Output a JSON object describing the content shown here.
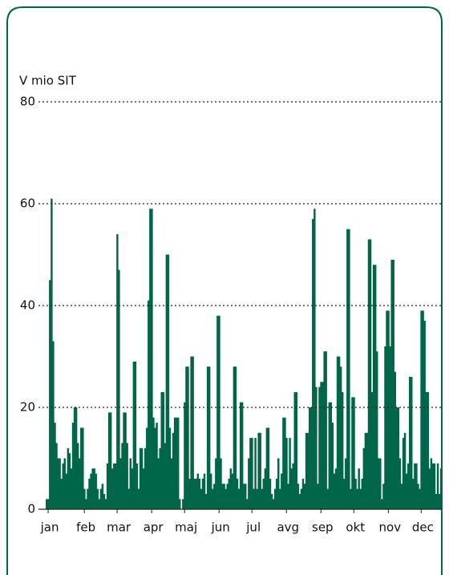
{
  "chart_data": {
    "type": "bar",
    "y_label": "V mio SIT",
    "color": "#00664a",
    "ylim": [
      0,
      80
    ],
    "yticks": [
      0,
      20,
      40,
      60,
      80
    ],
    "grid": true,
    "categories": [
      "jan",
      null,
      null,
      null,
      null,
      null,
      null,
      null,
      null,
      null,
      null,
      null,
      null,
      null,
      null,
      null,
      null,
      null,
      null,
      null,
      null,
      null,
      "feb",
      null,
      null,
      null,
      null,
      null,
      null,
      null,
      null,
      null,
      null,
      null,
      null,
      null,
      null,
      null,
      null,
      null,
      null,
      null,
      "mar",
      null,
      null,
      null,
      null,
      null,
      null,
      null,
      null,
      null,
      null,
      null,
      null,
      null,
      null,
      null,
      null,
      null,
      null,
      null,
      null,
      "apr",
      null,
      null,
      null,
      null,
      null,
      null,
      null,
      null,
      null,
      null,
      null,
      null,
      null,
      null,
      null,
      null,
      null,
      null,
      null,
      "maj",
      null,
      null,
      null,
      null,
      null,
      null,
      null,
      null,
      null,
      null,
      null,
      null,
      null,
      null,
      null,
      null,
      null,
      null,
      null,
      null,
      "jun",
      null,
      null,
      null,
      null,
      null,
      null,
      null,
      null,
      null,
      null,
      null,
      null,
      null,
      null,
      null,
      null,
      null,
      null,
      null,
      "jul",
      null,
      null,
      null,
      null,
      null,
      null,
      null,
      null,
      null,
      null,
      null,
      null,
      null,
      null,
      null,
      null,
      null,
      null,
      null,
      null,
      "avg",
      null,
      null,
      null,
      null,
      null,
      null,
      null,
      null,
      null,
      null,
      null,
      null,
      null,
      null,
      null,
      null,
      null,
      null,
      null,
      null,
      "sep",
      null,
      null,
      null,
      null,
      null,
      null,
      null,
      null,
      null,
      null,
      null,
      null,
      null,
      null,
      null,
      null,
      null,
      null,
      null,
      "okt",
      null,
      null,
      null,
      null,
      null,
      null,
      null,
      null,
      null,
      null,
      null,
      null,
      null,
      null,
      null,
      null,
      null,
      null,
      null,
      null,
      "nov",
      null,
      null,
      null,
      null,
      null,
      null,
      null,
      null,
      null,
      null,
      null,
      null,
      null,
      null,
      null,
      null,
      null,
      null,
      null,
      "dec",
      null,
      null,
      null,
      null,
      null,
      null,
      null,
      null,
      null,
      null,
      null,
      null,
      null
    ],
    "values": [
      2,
      2,
      45,
      61,
      33,
      17,
      13,
      10,
      10,
      6,
      9,
      10,
      7,
      12,
      11,
      8,
      17,
      20,
      20,
      13,
      10,
      16,
      16,
      4,
      2,
      4,
      6,
      7,
      8,
      8,
      7,
      4,
      2,
      4,
      5,
      3,
      2,
      9,
      19,
      19,
      8,
      9,
      9,
      54,
      47,
      10,
      13,
      19,
      19,
      13,
      4,
      10,
      8,
      29,
      29,
      9,
      4,
      12,
      12,
      8,
      12,
      16,
      41,
      59,
      59,
      18,
      16,
      17,
      10,
      12,
      23,
      23,
      13,
      50,
      50,
      16,
      10,
      15,
      18,
      18,
      18,
      2,
      0,
      2,
      21,
      28,
      28,
      6,
      30,
      30,
      6,
      6,
      7,
      6,
      4,
      6,
      7,
      3,
      28,
      28,
      7,
      4,
      5,
      10,
      38,
      38,
      10,
      5,
      5,
      4,
      5,
      6,
      8,
      7,
      28,
      28,
      6,
      4,
      21,
      21,
      5,
      5,
      2,
      10,
      14,
      14,
      4,
      14,
      4,
      15,
      15,
      4,
      6,
      8,
      16,
      16,
      6,
      3,
      2,
      4,
      6,
      10,
      4,
      7,
      18,
      18,
      14,
      5,
      14,
      8,
      9,
      23,
      23,
      5,
      3,
      4,
      6,
      5,
      15,
      15,
      20,
      20,
      57,
      59,
      24,
      5,
      24,
      25,
      25,
      31,
      31,
      4,
      21,
      21,
      17,
      7,
      8,
      30,
      30,
      28,
      23,
      6,
      10,
      55,
      55,
      4,
      22,
      22,
      6,
      4,
      8,
      4,
      6,
      12,
      15,
      15,
      53,
      53,
      23,
      48,
      48,
      31,
      10,
      10,
      2,
      5,
      32,
      39,
      39,
      32,
      49,
      49,
      27,
      20,
      20,
      10,
      5,
      14,
      15,
      7,
      9,
      26,
      26,
      6,
      9,
      9,
      5,
      4,
      39,
      39,
      37,
      23,
      23,
      8,
      10,
      9,
      9,
      3,
      9,
      3,
      8
    ]
  }
}
